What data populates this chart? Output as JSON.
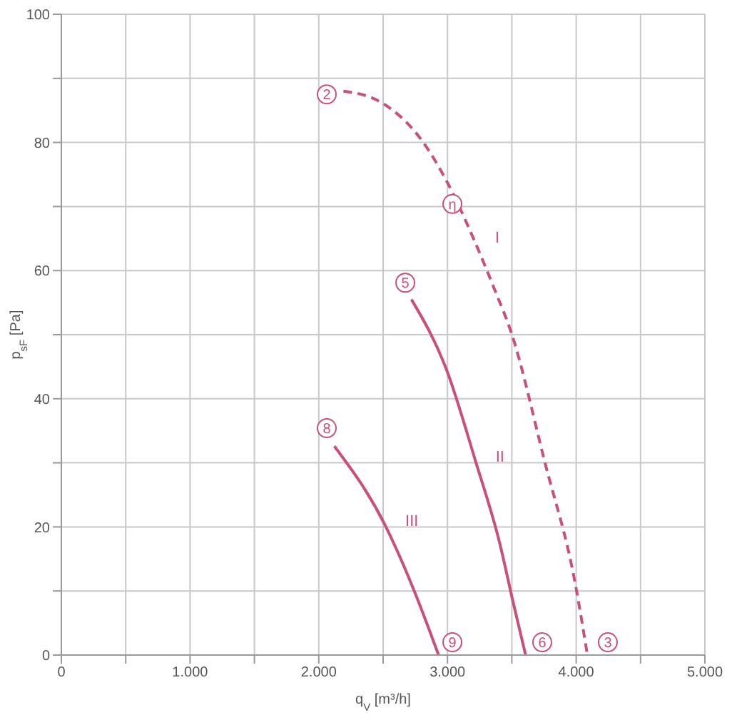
{
  "chart_data": {
    "type": "line",
    "xlabel": "q$_{V}$ [m³/h]",
    "ylabel": "p$_{sF}$ [Pa]",
    "xlim": [
      0,
      5000
    ],
    "ylim": [
      0,
      100
    ],
    "xticks": [
      0,
      {
        "value": 500,
        "label": null
      },
      {
        "value": 1000,
        "label": "1.000"
      },
      {
        "value": 1500,
        "label": null
      },
      {
        "value": 2000,
        "label": "2.000"
      },
      {
        "value": 2500,
        "label": null
      },
      {
        "value": 3000,
        "label": "3.000"
      },
      {
        "value": 3500,
        "label": null
      },
      {
        "value": 4000,
        "label": "4.000"
      },
      {
        "value": 4500,
        "label": null
      },
      {
        "value": 5000,
        "label": "5.000"
      }
    ],
    "yticks": [
      0,
      {
        "value": 10,
        "label": null
      },
      20,
      {
        "value": 30,
        "label": null
      },
      40,
      {
        "value": 50,
        "label": null
      },
      60,
      {
        "value": 70,
        "label": null
      },
      80,
      {
        "value": 90,
        "label": null
      },
      100
    ],
    "grid": true,
    "marker": "none",
    "series": [
      {
        "name": "I",
        "color": "#c8507a",
        "line_style": "dashed",
        "x": [
          2192,
          2480,
          2812,
          2995,
          3215,
          3367,
          3496,
          3755,
          3995,
          4087
        ],
        "values": [
          88.0,
          86.3,
          80.0,
          73.9,
          64.4,
          57.0,
          50.3,
          30.2,
          10.9,
          0
        ]
      },
      {
        "name": "II",
        "color": "#c8507a",
        "line_style": "solid",
        "x": [
          2720,
          2997,
          3219,
          3404,
          3514,
          3607
        ],
        "values": [
          55.5,
          44.3,
          30.2,
          17.6,
          7.9,
          0
        ]
      },
      {
        "name": "III",
        "color": "#c8507a",
        "line_style": "solid",
        "x": [
          2121,
          2517,
          2738,
          2931
        ],
        "values": [
          32.6,
          20.2,
          10.2,
          0
        ]
      }
    ],
    "annotations": [
      {
        "text": "2",
        "x": 2062,
        "y": 87.5
      },
      {
        "text": "5",
        "x": 2672,
        "y": 58.1
      },
      {
        "text": "8",
        "x": 2062,
        "y": 35.4
      },
      {
        "text": "9",
        "x": 3038,
        "y": 2
      },
      {
        "text": "6",
        "x": 3736,
        "y": 2
      },
      {
        "text": "3",
        "x": 4246,
        "y": 2
      },
      {
        "text": "η",
        "x": 3038,
        "y": 70.4
      }
    ]
  }
}
